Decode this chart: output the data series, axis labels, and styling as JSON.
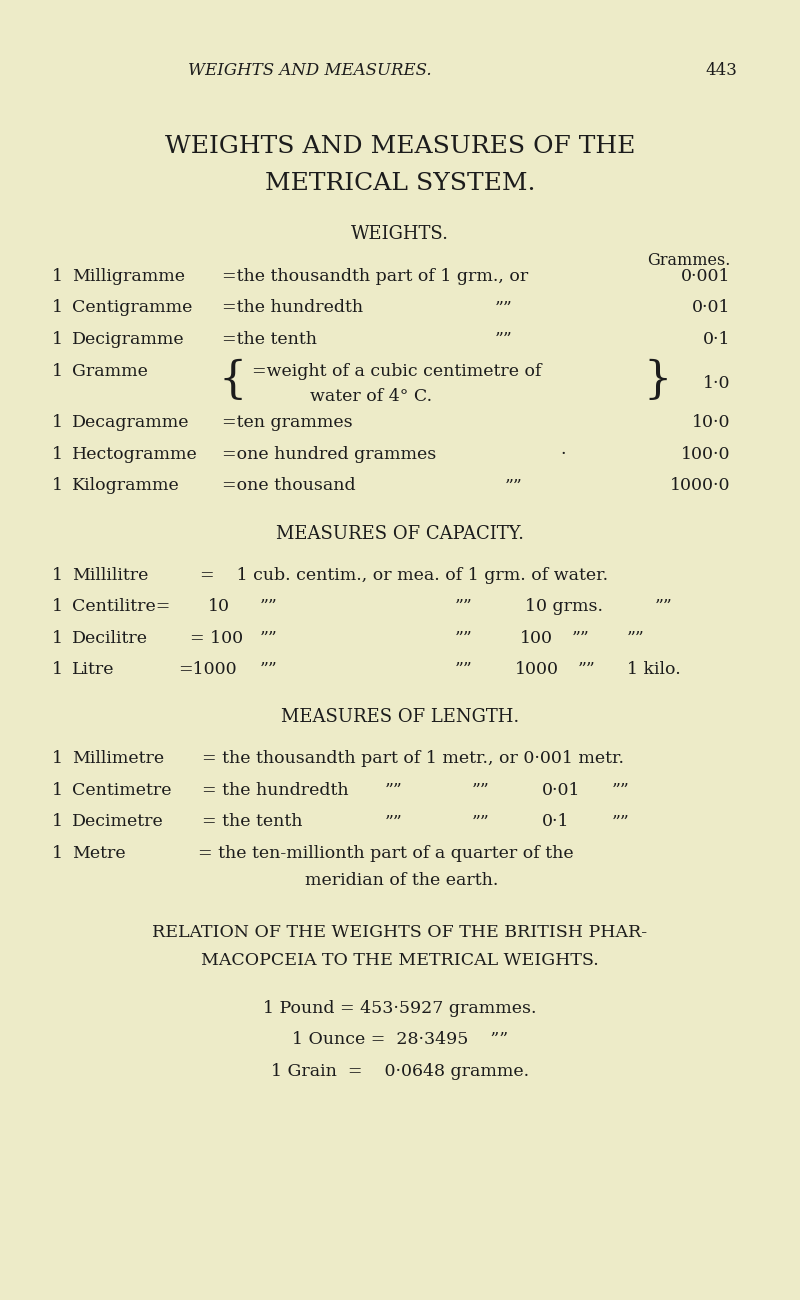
{
  "background_color": "#edebc8",
  "text_color": "#1c1c1c",
  "fig_width": 8.0,
  "fig_height": 13.0,
  "dpi": 100
}
